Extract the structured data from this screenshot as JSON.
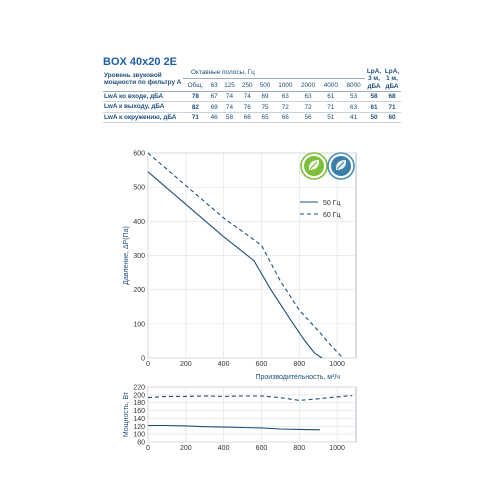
{
  "model": "BOX 40x20 2E",
  "sound_table": {
    "row_header": "Уровень звуковой мощности по фильтру А",
    "bands_header": "Октавные полосы, Гц",
    "total_header": "Общ.",
    "bands": [
      "63",
      "125",
      "250",
      "500",
      "1000",
      "2000",
      "4000",
      "8000"
    ],
    "lpa3_header": "LpA, 3 м, дБА",
    "lpa1_header": "LpA, 1 м, дБА",
    "rows": [
      {
        "label": "LwA ко входе, дБА",
        "total": "78",
        "values": [
          "67",
          "74",
          "74",
          "69",
          "63",
          "63",
          "61",
          "53"
        ],
        "lpa3": "58",
        "lpa1": "68"
      },
      {
        "label": "LwA к выходу, дБА",
        "total": "82",
        "values": [
          "69",
          "74",
          "76",
          "75",
          "72",
          "72",
          "71",
          "63"
        ],
        "lpa3": "61",
        "lpa1": "71"
      },
      {
        "label": "LwA к окружению, дБА",
        "total": "71",
        "values": [
          "46",
          "58",
          "66",
          "65",
          "66",
          "56",
          "51",
          "41"
        ],
        "lpa3": "50",
        "lpa1": "60"
      }
    ]
  },
  "badges": [
    "eco-fan-leaf-icon",
    "eco-fan-leaf-icon"
  ],
  "colors": {
    "line50": "#1f4e79",
    "line60": "#1f4e79",
    "text": "#1f4e79"
  },
  "chart_data": [
    {
      "type": "line",
      "ylabel": "Давление, ΔP(Па)",
      "xlabel": "Производительность, м³/ч",
      "xlim": [
        0,
        1100
      ],
      "ylim": [
        0,
        600
      ],
      "xticks": [
        0,
        200,
        400,
        600,
        800,
        1000
      ],
      "yticks": [
        0,
        100,
        200,
        300,
        400,
        500,
        600
      ],
      "grid": true,
      "legend": "top-right",
      "series": [
        {
          "name": "50 Гц",
          "style": "solid",
          "x": [
            0,
            200,
            400,
            560,
            650,
            750,
            830,
            880,
            920
          ],
          "y": [
            545,
            450,
            355,
            285,
            200,
            115,
            50,
            15,
            0
          ]
        },
        {
          "name": "60 Гц",
          "style": "dashed",
          "x": [
            0,
            200,
            400,
            600,
            700,
            800,
            900,
            970,
            1030
          ],
          "y": [
            600,
            505,
            410,
            330,
            225,
            140,
            80,
            35,
            0
          ]
        }
      ]
    },
    {
      "type": "line",
      "ylabel": "Мощность, Вт",
      "xlim": [
        0,
        1100
      ],
      "ylim": [
        80,
        220
      ],
      "xticks": [
        0,
        200,
        400,
        600,
        800,
        1000
      ],
      "yticks": [
        80,
        100,
        120,
        140,
        160,
        180,
        200,
        220
      ],
      "grid": true,
      "series": [
        {
          "name": "60 Гц",
          "style": "dashed",
          "x": [
            0,
            100,
            200,
            300,
            400,
            500,
            600,
            700,
            800,
            900,
            1000,
            1080
          ],
          "y": [
            193,
            196,
            196,
            197,
            196,
            197,
            197,
            193,
            186,
            190,
            195,
            198
          ]
        },
        {
          "name": "50 Гц",
          "style": "solid",
          "x": [
            0,
            100,
            200,
            300,
            400,
            500,
            600,
            700,
            800,
            910
          ],
          "y": [
            122,
            122,
            121,
            119,
            118,
            117,
            116,
            113,
            112,
            111
          ]
        }
      ]
    }
  ]
}
